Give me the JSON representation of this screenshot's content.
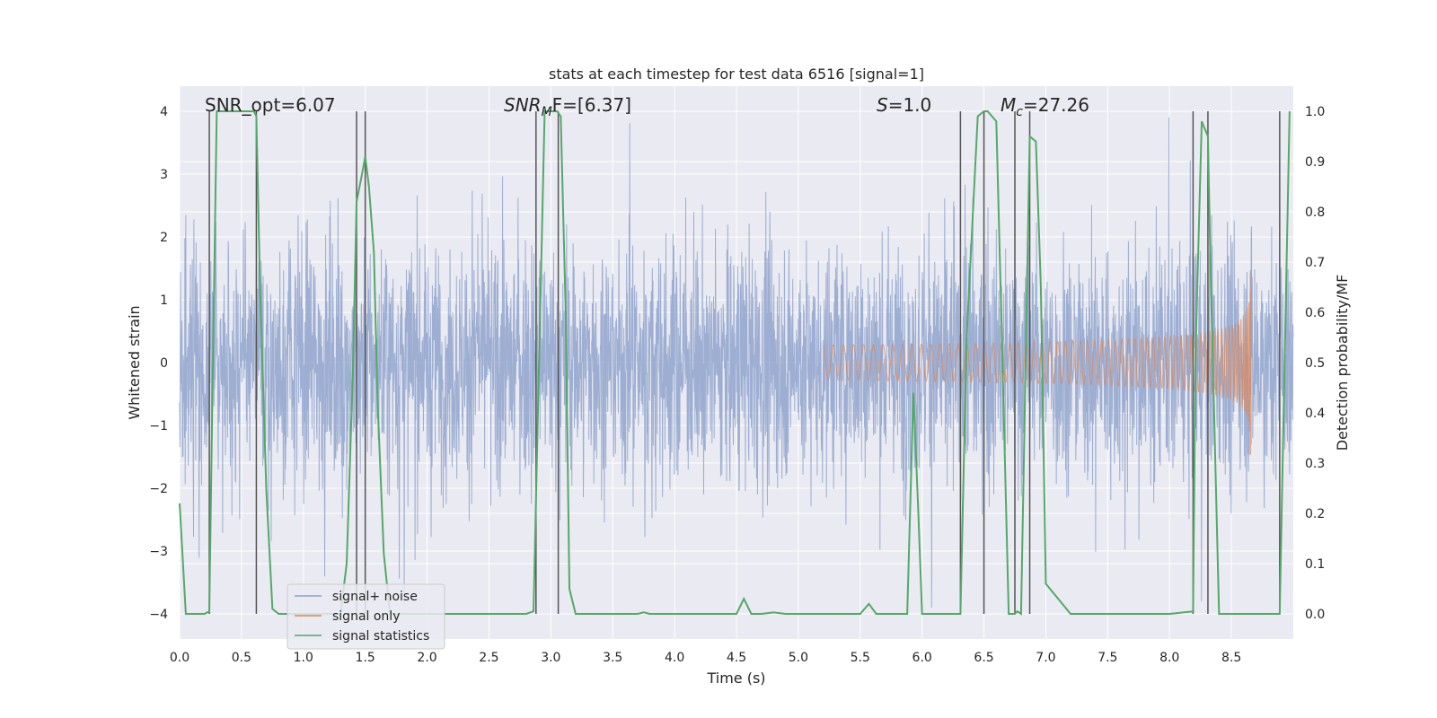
{
  "chart_data": {
    "type": "line",
    "title": "stats at each timestep for test data 6516 [signal=1]",
    "xlabel": "Time (s)",
    "ylabel": "Whitened strain",
    "y2label": "Detection probability/MF",
    "xlim": [
      0.0,
      9.0
    ],
    "ylim": [
      -4.4,
      4.4
    ],
    "y2lim": [
      -0.05,
      1.05
    ],
    "xticks": [
      "0.0",
      "0.5",
      "1.0",
      "1.5",
      "2.0",
      "2.5",
      "3.0",
      "3.5",
      "4.0",
      "4.5",
      "5.0",
      "5.5",
      "6.0",
      "6.5",
      "7.0",
      "7.5",
      "8.0",
      "8.5"
    ],
    "yticks": [
      "4",
      "3",
      "2",
      "1",
      "0",
      "−1",
      "−2",
      "−3",
      "−4"
    ],
    "y2ticks": [
      "1.0",
      "0.9",
      "0.8",
      "0.7",
      "0.6",
      "0.5",
      "0.4",
      "0.3",
      "0.2",
      "0.1",
      "0.0"
    ],
    "grid": true,
    "legend_position": "lower-left",
    "annotations": {
      "snr_opt": "SNR_opt=6.07",
      "snr_mf_main": "SNR",
      "snr_mf_sub": "M",
      "snr_mf_tail": "F=[6.37]",
      "s_main": "S",
      "s_tail": "=1.0",
      "mc_main": "M",
      "mc_sub": "c",
      "mc_tail": "=27.26"
    },
    "vertical_lines_x": [
      0.24,
      0.62,
      1.43,
      1.5,
      2.88,
      3.06,
      6.31,
      6.5,
      6.75,
      6.87,
      8.19,
      8.31,
      8.89
    ],
    "series": [
      {
        "name": "signal+ noise",
        "color": "#8fa3cc",
        "description_stats": {
          "envelope_typical": [
            -1.6,
            1.6
          ],
          "peak_max": 3.9,
          "peak_min": -3.9
        }
      },
      {
        "name": "signal only",
        "color": "#dd8452",
        "chirp_start": 5.2,
        "chirp_peak_time": 8.66,
        "chirp_peak_amp": 1.5
      },
      {
        "name": "signal statistics",
        "color": "#55a868",
        "axis": "secondary",
        "x": [
          0.0,
          0.05,
          0.1,
          0.15,
          0.2,
          0.24,
          0.26,
          0.3,
          0.35,
          0.4,
          0.45,
          0.5,
          0.55,
          0.6,
          0.62,
          0.65,
          0.7,
          0.75,
          0.8,
          0.9,
          1.0,
          1.1,
          1.2,
          1.3,
          1.35,
          1.4,
          1.43,
          1.47,
          1.5,
          1.53,
          1.57,
          1.6,
          1.65,
          1.7,
          1.8,
          2.0,
          2.2,
          2.4,
          2.6,
          2.8,
          2.86,
          2.9,
          2.95,
          3.0,
          3.05,
          3.08,
          3.12,
          3.15,
          3.2,
          3.4,
          3.7,
          3.75,
          3.8,
          4.0,
          4.3,
          4.4,
          4.5,
          4.56,
          4.62,
          4.7,
          4.8,
          4.9,
          5.0,
          5.3,
          5.5,
          5.57,
          5.63,
          5.7,
          5.8,
          5.88,
          5.93,
          5.97,
          6.0,
          6.1,
          6.31,
          6.36,
          6.45,
          6.5,
          6.53,
          6.6,
          6.65,
          6.7,
          6.75,
          6.77,
          6.8,
          6.87,
          6.92,
          6.96,
          7.0,
          7.2,
          7.5,
          7.8,
          8.0,
          8.19,
          8.21,
          8.26,
          8.31,
          8.33,
          8.4,
          8.6,
          8.7,
          8.89,
          8.93,
          8.97
        ],
        "values": [
          0.22,
          0.0,
          0.0,
          0.0,
          0.0,
          0.005,
          0.35,
          1.0,
          1.0,
          1.0,
          1.0,
          1.0,
          1.0,
          1.0,
          0.99,
          0.65,
          0.25,
          0.01,
          0.0,
          0.0,
          0.0,
          0.0,
          0.0,
          0.0,
          0.1,
          0.48,
          0.82,
          0.87,
          0.91,
          0.85,
          0.72,
          0.42,
          0.12,
          0.0,
          0.0,
          0.0,
          0.0,
          0.0,
          0.0,
          0.0,
          0.005,
          0.45,
          1.0,
          1.0,
          1.0,
          0.99,
          0.6,
          0.05,
          0.0,
          0.0,
          0.0,
          0.003,
          0.0,
          0.0,
          0.0,
          0.0,
          0.0,
          0.03,
          0.0,
          0.0,
          0.003,
          0.0,
          0.0,
          0.0,
          0.0,
          0.02,
          0.0,
          0.0,
          0.0,
          0.0,
          0.44,
          0.2,
          0.0,
          0.0,
          0.0,
          0.55,
          0.99,
          1.0,
          1.0,
          0.98,
          0.5,
          0.0,
          0.0,
          0.005,
          0.0,
          0.95,
          0.94,
          0.65,
          0.06,
          0.0,
          0.0,
          0.0,
          0.0,
          0.005,
          0.52,
          0.98,
          0.95,
          0.7,
          0.0,
          0.0,
          0.0,
          0.0,
          0.5,
          1.0
        ]
      }
    ]
  }
}
